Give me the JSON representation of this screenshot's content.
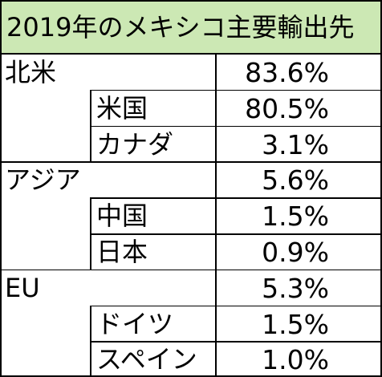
{
  "chart_data": {
    "type": "table",
    "title": "2019年のメキシコ主要輸出先",
    "groups": [
      {
        "label": "北米",
        "value": "83.6%",
        "children": [
          {
            "label": "米国",
            "value": "80.5%"
          },
          {
            "label": "カナダ",
            "value": "3.1%"
          }
        ]
      },
      {
        "label": "アジア",
        "value": "5.6%",
        "children": [
          {
            "label": "中国",
            "value": "1.5%"
          },
          {
            "label": "日本",
            "value": "0.9%"
          }
        ]
      },
      {
        "label": "EU",
        "value": "5.3%",
        "children": [
          {
            "label": "ドイツ",
            "value": "1.5%"
          },
          {
            "label": "スペイン",
            "value": "1.0%"
          }
        ]
      }
    ],
    "colors": {
      "title_background": "#cce8b4",
      "border": "#000000",
      "text": "#000000"
    }
  }
}
